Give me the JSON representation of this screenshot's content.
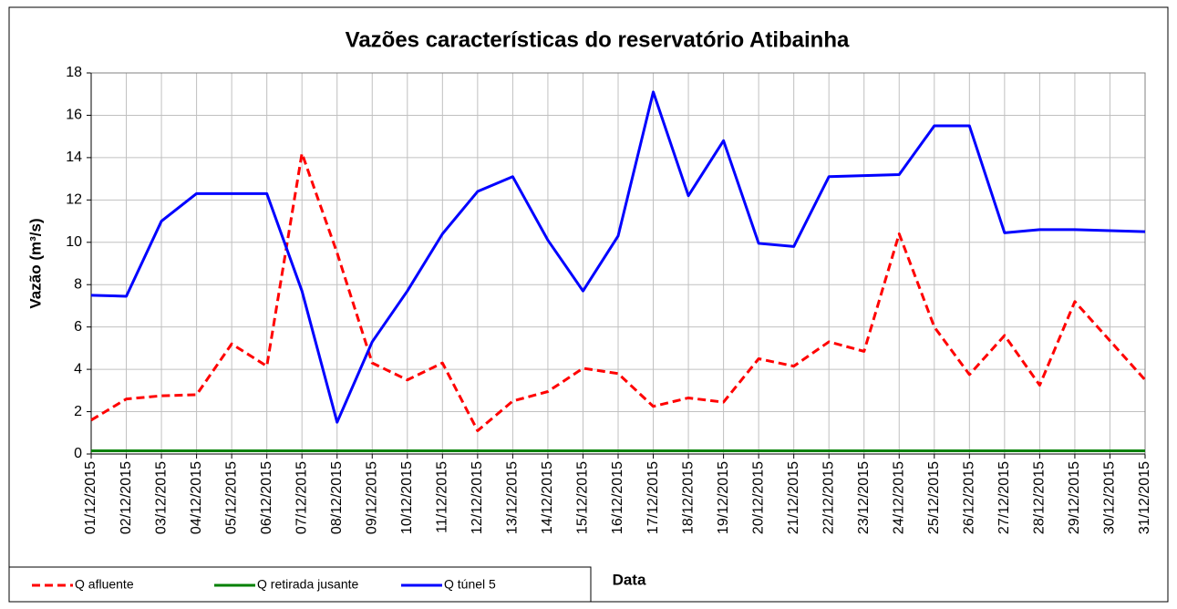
{
  "chart_data": {
    "type": "line",
    "title": "Vazões características do reservatório Atibainha",
    "x_label": "Data",
    "y_label": "Vazão (m³/s)",
    "categories": [
      "01/12/2015",
      "02/12/2015",
      "03/12/2015",
      "04/12/2015",
      "05/12/2015",
      "06/12/2015",
      "07/12/2015",
      "08/12/2015",
      "09/12/2015",
      "10/12/2015",
      "11/12/2015",
      "12/12/2015",
      "13/12/2015",
      "14/12/2015",
      "15/12/2015",
      "16/12/2015",
      "17/12/2015",
      "18/12/2015",
      "19/12/2015",
      "20/12/2015",
      "21/12/2015",
      "22/12/2015",
      "23/12/2015",
      "24/12/2015",
      "25/12/2015",
      "26/12/2015",
      "27/12/2015",
      "28/12/2015",
      "29/12/2015",
      "30/12/2015",
      "31/12/2015"
    ],
    "series": [
      {
        "name": "Q afluente",
        "color": "#ff0000",
        "dashed": true,
        "values": [
          1.6,
          2.6,
          2.75,
          2.8,
          5.2,
          4.15,
          14.2,
          9.5,
          4.3,
          3.5,
          4.3,
          1.1,
          2.5,
          2.95,
          4.05,
          3.8,
          2.25,
          2.65,
          2.45,
          4.5,
          4.15,
          5.3,
          4.85,
          10.4,
          6.0,
          3.75,
          5.6,
          3.25,
          7.2,
          5.35,
          3.5
        ]
      },
      {
        "name": "Q retirada jusante",
        "color": "#008000",
        "dashed": false,
        "values": [
          0.15,
          0.15,
          0.15,
          0.15,
          0.15,
          0.15,
          0.15,
          0.15,
          0.15,
          0.15,
          0.15,
          0.15,
          0.15,
          0.15,
          0.15,
          0.15,
          0.15,
          0.15,
          0.15,
          0.15,
          0.15,
          0.15,
          0.15,
          0.15,
          0.15,
          0.15,
          0.15,
          0.15,
          0.15,
          0.15,
          0.15
        ]
      },
      {
        "name": "Q túnel 5",
        "color": "#0000ff",
        "dashed": false,
        "values": [
          7.5,
          7.45,
          11.0,
          12.3,
          12.3,
          12.3,
          7.7,
          1.5,
          5.3,
          7.7,
          10.4,
          12.4,
          13.1,
          10.1,
          7.7,
          10.3,
          17.1,
          12.2,
          14.8,
          9.95,
          9.8,
          13.1,
          13.15,
          13.2,
          15.5,
          15.5,
          10.45,
          10.6,
          10.6,
          10.55,
          10.5
        ]
      }
    ],
    "ylim": [
      0,
      18
    ],
    "yticks": [
      0,
      2,
      4,
      6,
      8,
      10,
      12,
      14,
      16,
      18
    ],
    "grid": true
  }
}
